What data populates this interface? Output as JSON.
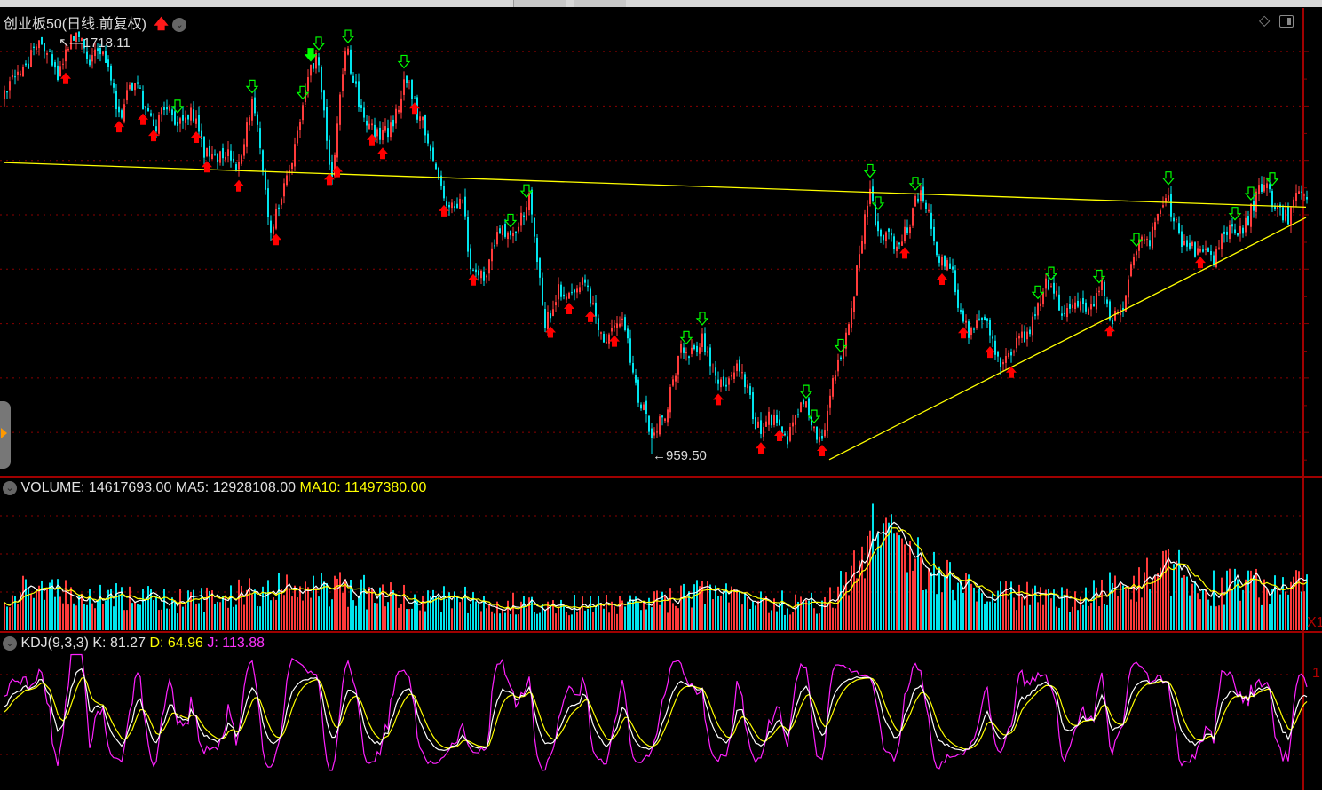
{
  "header": {
    "title": "创业板50(日线.前复权)",
    "title_arrow_icon": "red-up-arrow-icon",
    "menu_icon": "chevron-down-circle-icon",
    "right_icons": [
      "diamond-icon",
      "panel-toggle-icon"
    ]
  },
  "volume_panel": {
    "volume_label": "VOLUME: 14617693.00",
    "ma5_label": "MA5: 12928108.00",
    "ma10_label": "MA10: 11497380.00",
    "axis_fragment": "X1"
  },
  "kdj_panel": {
    "name_label": "KDJ(9,3,3)",
    "k_label": "K: 81.27",
    "d_label": "D: 64.96",
    "j_label": "J: 113.88",
    "axis_fragment": "1"
  },
  "colors": {
    "up": "#ff3b3b",
    "down": "#00e5ee",
    "ma5": "#ffffff",
    "ma10": "#ffff00",
    "k": "#ffffff",
    "d": "#ffff00",
    "j": "#ff22ff",
    "trendline": "#ffff00",
    "grid": "#8b0000",
    "buy_arrow": "#ff0000",
    "sell_arrow": "#00ff00"
  },
  "chart_data": {
    "type": "candlestick",
    "bars": 490,
    "price_path": [
      [
        2,
        1615
      ],
      [
        10,
        1713
      ],
      [
        20,
        1672
      ],
      [
        28,
        1718
      ],
      [
        37,
        1689
      ],
      [
        43,
        1599
      ],
      [
        50,
        1632
      ],
      [
        57,
        1566
      ],
      [
        67,
        1599
      ],
      [
        75,
        1526
      ],
      [
        87,
        1485
      ],
      [
        93,
        1607
      ],
      [
        100,
        1387
      ],
      [
        107,
        1468
      ],
      [
        112,
        1615
      ],
      [
        117,
        1681
      ],
      [
        123,
        1485
      ],
      [
        128,
        1689
      ],
      [
        140,
        1526
      ],
      [
        150,
        1632
      ],
      [
        157,
        1583
      ],
      [
        163,
        1436
      ],
      [
        172,
        1420
      ],
      [
        175,
        1281
      ],
      [
        190,
        1371
      ],
      [
        197,
        1411
      ],
      [
        203,
        1224
      ],
      [
        217,
        1273
      ],
      [
        223,
        1191
      ],
      [
        233,
        1183
      ],
      [
        243,
        979
      ],
      [
        253,
        1126
      ],
      [
        262,
        1175
      ],
      [
        267,
        1077
      ],
      [
        273,
        1126
      ],
      [
        283,
        1028
      ],
      [
        292,
        995
      ],
      [
        300,
        1044
      ],
      [
        307,
        995
      ],
      [
        315,
        1167
      ],
      [
        318,
        1240
      ],
      [
        325,
        1428
      ],
      [
        335,
        1322
      ],
      [
        342,
        1444
      ],
      [
        355,
        1297
      ],
      [
        358,
        1216
      ],
      [
        367,
        1191
      ],
      [
        378,
        1126
      ],
      [
        388,
        1240
      ],
      [
        393,
        1265
      ],
      [
        403,
        1216
      ],
      [
        412,
        1273
      ],
      [
        415,
        1183
      ],
      [
        425,
        1322
      ],
      [
        435,
        1420
      ],
      [
        448,
        1314
      ],
      [
        460,
        1362
      ],
      [
        475,
        1452
      ],
      [
        482,
        1379
      ],
      [
        487,
        1452
      ]
    ],
    "high_marker": {
      "bar": 28,
      "value": 1718.11,
      "label": "1718.11"
    },
    "low_marker": {
      "bar": 243,
      "value": 959.5,
      "label": "959.50"
    },
    "price_range": [
      940,
      1740
    ],
    "trendlines": [
      {
        "from": [
          0,
          1496
        ],
        "to": [
          489,
          1414
        ]
      },
      {
        "from": [
          310,
          950
        ],
        "to": [
          489,
          1395
        ]
      }
    ],
    "buy_signal_bars": [
      23,
      43,
      52,
      56,
      72,
      76,
      88,
      102,
      122,
      125,
      138,
      142,
      154,
      165,
      176,
      205,
      212,
      220,
      229,
      268,
      284,
      291,
      307,
      338,
      352,
      360,
      370,
      378,
      415,
      449
    ],
    "sell_signal_bars": [
      65,
      93,
      112,
      118,
      129,
      150,
      190,
      196,
      256,
      262,
      301,
      304,
      314,
      325,
      328,
      342,
      388,
      393,
      411,
      425,
      437,
      462,
      468,
      476
    ],
    "strong_sell_signal_bars": [
      115
    ],
    "volume_millions_envelope": [
      [
        0,
        8
      ],
      [
        10,
        11
      ],
      [
        33,
        9
      ],
      [
        67,
        7.5
      ],
      [
        80,
        8
      ],
      [
        93,
        10
      ],
      [
        127,
        11
      ],
      [
        143,
        9
      ],
      [
        173,
        8
      ],
      [
        213,
        6.5
      ],
      [
        243,
        7
      ],
      [
        260,
        10
      ],
      [
        283,
        7
      ],
      [
        307,
        7.5
      ],
      [
        315,
        12
      ],
      [
        328,
        27
      ],
      [
        343,
        17
      ],
      [
        367,
        9
      ],
      [
        400,
        8.5
      ],
      [
        423,
        12
      ],
      [
        435,
        17
      ],
      [
        450,
        11
      ],
      [
        487,
        11.5
      ]
    ],
    "volume_range_millions": [
      0,
      39.5
    ],
    "volume_last": 14617693.0,
    "volume_ma5": 12928108.0,
    "volume_ma10": 11497380.0,
    "kdj_params": [
      9,
      3,
      3
    ],
    "kdj_last": {
      "K": 81.27,
      "D": 64.96,
      "J": 113.88
    }
  }
}
